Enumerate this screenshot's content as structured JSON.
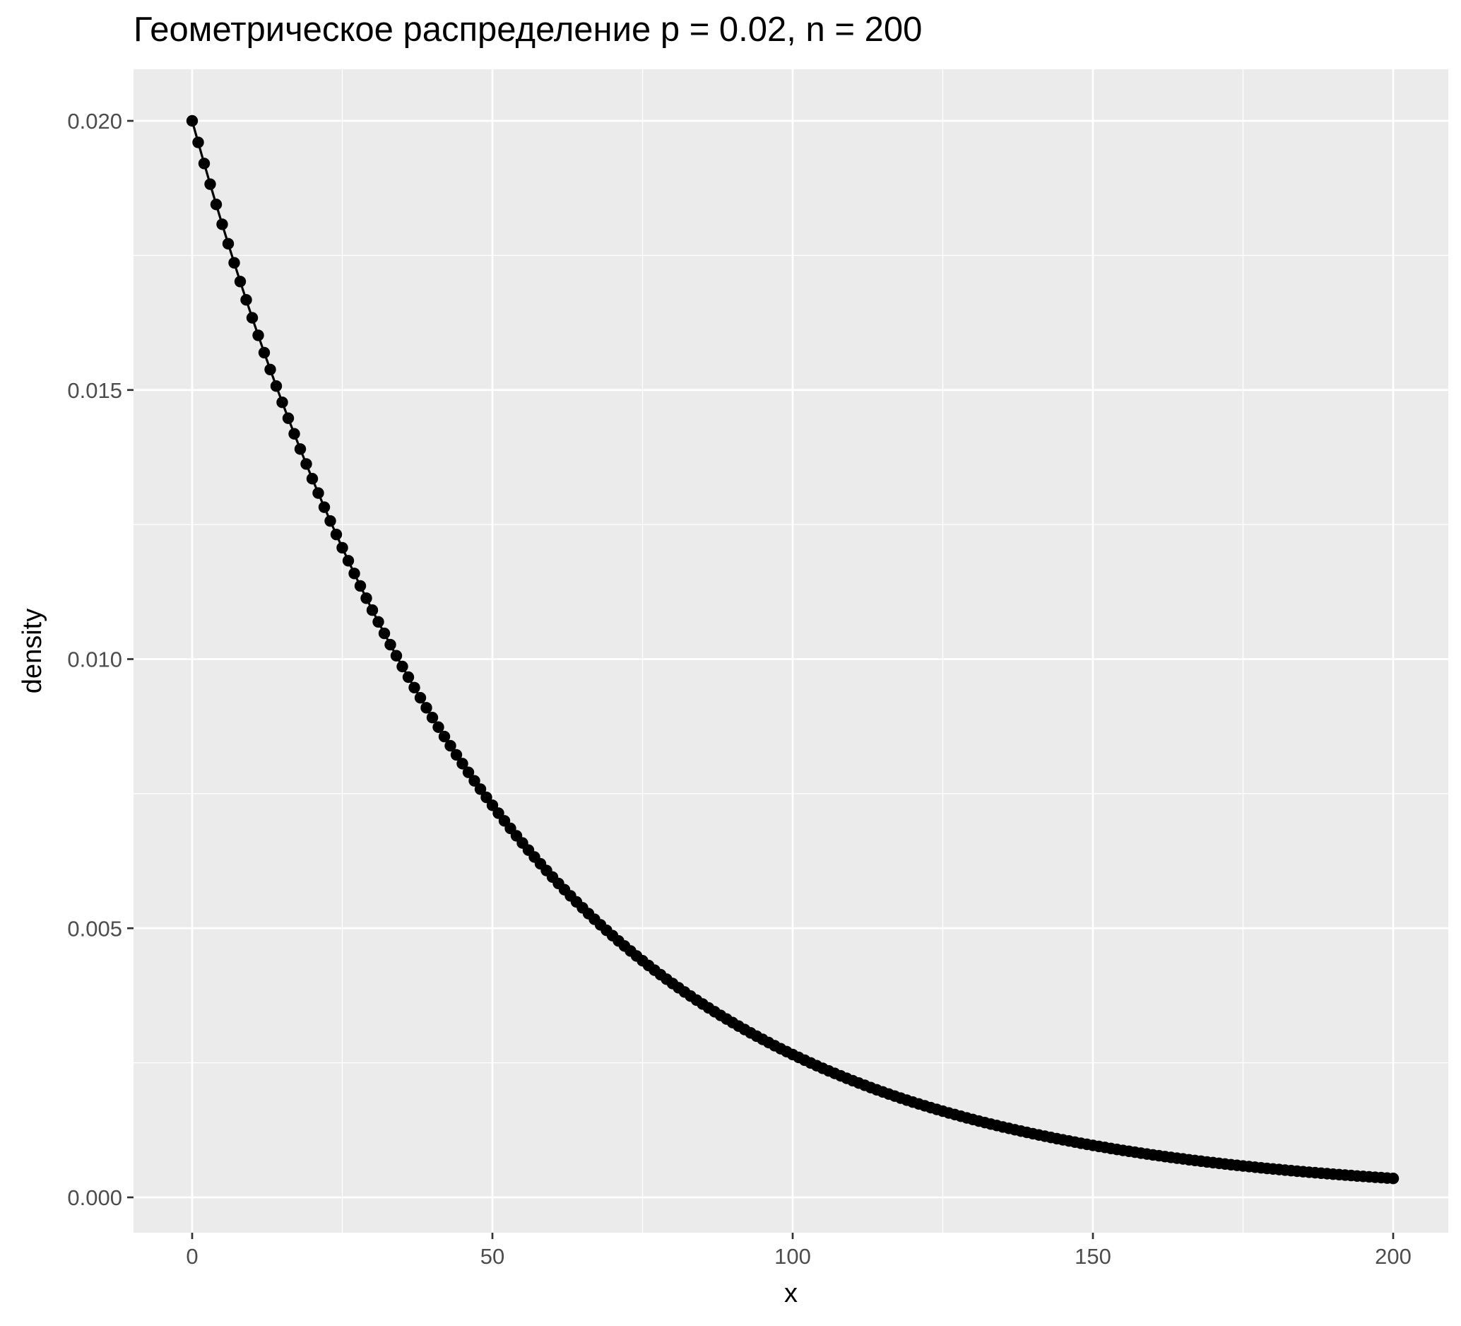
{
  "chart_data": {
    "type": "line",
    "title": "Геометрическое распределение p = 0.02, n = 200",
    "xlabel": "x",
    "ylabel": "density",
    "xlim": [
      -10,
      210
    ],
    "ylim": [
      -0.0006,
      0.021
    ],
    "x_ticks": [
      0,
      50,
      100,
      150,
      200
    ],
    "x_tick_labels": [
      "0",
      "50",
      "100",
      "150",
      "200"
    ],
    "y_ticks": [
      0.0,
      0.005,
      0.01,
      0.015,
      0.02
    ],
    "y_tick_labels": [
      "0.000",
      "0.005",
      "0.010",
      "0.015",
      "0.020"
    ],
    "x_minor_ticks": [
      25,
      75,
      125,
      175
    ],
    "y_minor_ticks": [
      0.0025,
      0.0075,
      0.0125,
      0.0175
    ],
    "grid": true,
    "legend": "none",
    "series": [
      {
        "values": [
          0.02,
          0.0196,
          0.019208,
          0.018824,
          0.018447,
          0.018078,
          0.017717,
          0.017363,
          0.017015,
          0.016675,
          0.016341,
          0.016015,
          0.015694,
          0.01538,
          0.015073,
          0.014771,
          0.014476,
          0.014186,
          0.013903,
          0.013625,
          0.013352,
          0.013085,
          0.012823,
          0.012567,
          0.012316,
          0.012069,
          0.011828,
          0.011591,
          0.01136,
          0.011132,
          0.01091,
          0.010692,
          0.010478,
          0.010268,
          0.010063,
          0.009862,
          0.009665,
          0.009471,
          0.009282,
          0.009096,
          0.008914,
          0.008736,
          0.008561,
          0.00839,
          0.008222,
          0.008058,
          0.007897,
          0.007739,
          0.007584,
          0.007432,
          0.007284,
          0.007138,
          0.006995,
          0.006855,
          0.006718,
          0.006584,
          0.006452,
          0.006323,
          0.006197,
          0.006073,
          0.005951,
          0.005832,
          0.005716,
          0.005601,
          0.005489,
          0.00538,
          0.005272,
          0.005166,
          0.005063,
          0.004962,
          0.004863,
          0.004765,
          0.00467,
          0.004577,
          0.004485,
          0.004396,
          0.004308,
          0.004221,
          0.004137,
          0.004054,
          0.003973,
          0.003894,
          0.003816,
          0.00374,
          0.003665,
          0.003592,
          0.00352,
          0.003449,
          0.00338,
          0.003313,
          0.003247,
          0.003182,
          0.003118,
          0.003056,
          0.002995,
          0.002935,
          0.002876,
          0.002818,
          0.002762,
          0.002707,
          0.002653,
          0.0026,
          0.002548,
          0.002497,
          0.002447,
          0.002398,
          0.00235,
          0.002303,
          0.002257,
          0.002212,
          0.002168,
          0.002124,
          0.002082,
          0.00204,
          0.001999,
          0.001959,
          0.00192,
          0.001882,
          0.001844,
          0.001807,
          0.001771,
          0.001736,
          0.001701,
          0.001667,
          0.001634,
          0.001601,
          0.001569,
          0.001538,
          0.001507,
          0.001477,
          0.001447,
          0.001418,
          0.00139,
          0.001362,
          0.001335,
          0.001308,
          0.001282,
          0.001256,
          0.001231,
          0.001207,
          0.001183,
          0.001159,
          0.001136,
          0.001113,
          0.001091,
          0.001069,
          0.001048,
          0.001027,
          0.001006,
          0.000986,
          0.000966,
          0.000947,
          0.000928,
          0.000909,
          0.000891,
          0.000873,
          0.000856,
          0.000839,
          0.000822,
          0.000805,
          0.000789,
          0.000774,
          0.000758,
          0.000743,
          0.000728,
          0.000714,
          0.000699,
          0.000685,
          0.000672,
          0.000658,
          0.000645,
          0.000632,
          0.00062,
          0.000607,
          0.000595,
          0.000583,
          0.000572,
          0.00056,
          0.000549,
          0.000538,
          0.000527,
          0.000517,
          0.000506,
          0.000496,
          0.000486,
          0.000477,
          0.000467,
          0.000458,
          0.000449,
          0.00044,
          0.000431,
          0.000422,
          0.000414,
          0.000406,
          0.000397,
          0.00039,
          0.000382,
          0.000374,
          0.000367,
          0.000359,
          0.000352
        ],
        "x_start": 0,
        "x_step": 1,
        "color": "#000000",
        "marker": "point"
      }
    ],
    "colors": {
      "panel_background": "#EBEBEB",
      "grid_major": "#FFFFFF",
      "grid_minor": "#FFFFFF",
      "axis_text": "#4D4D4D",
      "axis_title": "#000000",
      "tick_mark": "#333333"
    }
  }
}
